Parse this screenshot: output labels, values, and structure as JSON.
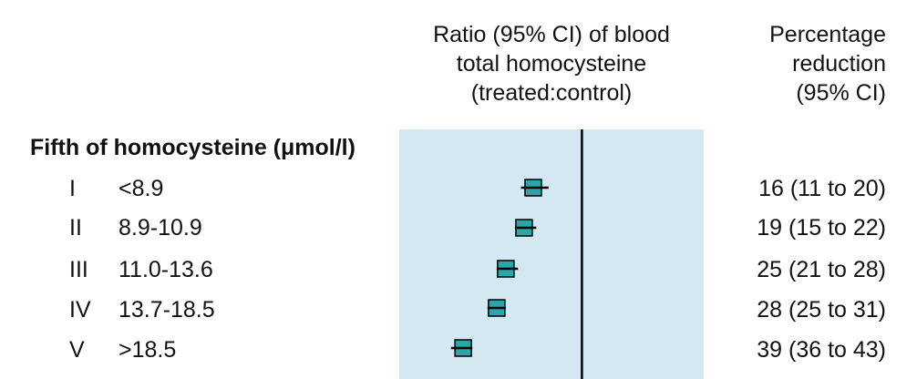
{
  "header": {
    "ratio_line1": "Ratio (95% CI) of blood",
    "ratio_line2": "total homocysteine",
    "ratio_line3": "(treated:control)",
    "pct_line1": "Percentage",
    "pct_line2": "reduction",
    "pct_line3": "(95% CI)"
  },
  "group_title": "Fifth of homocysteine (μmol/l)",
  "rows": [
    {
      "roman": "I",
      "range": "<8.9",
      "pct": "16 (11 to 20)"
    },
    {
      "roman": "II",
      "range": "8.9-10.9",
      "pct": "19 (15 to 22)"
    },
    {
      "roman": "III",
      "range": "11.0-13.6",
      "pct": "25 (21 to 28)"
    },
    {
      "roman": "IV",
      "range": "13.7-18.5",
      "pct": "28 (25 to 31)"
    },
    {
      "roman": "V",
      "range": ">18.5",
      "pct": "39 (36 to 43)"
    }
  ],
  "colors": {
    "panel": "#d4e8f2",
    "marker": "#2aa6a8",
    "line": "#000000"
  },
  "chart_data": {
    "type": "forest",
    "x_range": [
      0.4,
      1.4
    ],
    "reference_line": 1.0,
    "categories": [
      "I <8.9",
      "II 8.9-10.9",
      "III 11.0-13.6",
      "IV 13.7-18.5",
      "V >18.5"
    ],
    "estimate": [
      0.84,
      0.81,
      0.75,
      0.72,
      0.61
    ],
    "ci_low": [
      0.8,
      0.78,
      0.72,
      0.69,
      0.57
    ],
    "ci_high": [
      0.89,
      0.85,
      0.79,
      0.75,
      0.64
    ]
  }
}
